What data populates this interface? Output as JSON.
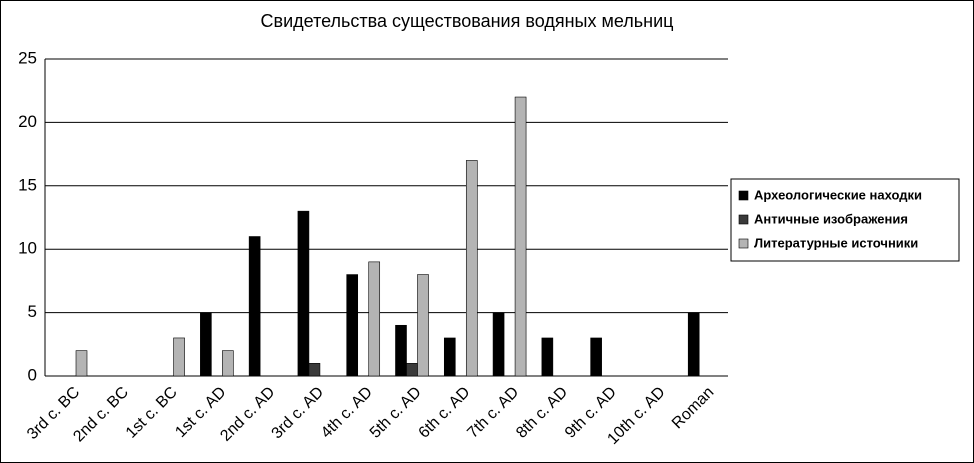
{
  "chart_data": {
    "type": "bar",
    "title": "Свидетельства существования водяных мельниц",
    "categories": [
      "3rd c. BC",
      "2nd c. BC",
      "1st c. BC",
      "1st c. AD",
      "2nd c. AD",
      "3rd c. AD",
      "4th c. AD",
      "5th c. AD",
      "6th c. AD",
      "7th c. AD",
      "8th c. AD",
      "9th c. AD",
      "10th c. AD",
      "Roman"
    ],
    "series": [
      {
        "name": "Археологические находки",
        "color": "#000000",
        "values": [
          0,
          0,
          0,
          5,
          11,
          13,
          8,
          4,
          3,
          5,
          3,
          3,
          0,
          5
        ]
      },
      {
        "name": "Античные изображения",
        "color": "#3a3a3a",
        "values": [
          0,
          0,
          0,
          0,
          0,
          1,
          0,
          1,
          0,
          0,
          0,
          0,
          0,
          0
        ]
      },
      {
        "name": "Литературные источники",
        "color": "#b4b4b4",
        "values": [
          2,
          0,
          3,
          2,
          0,
          0,
          9,
          8,
          17,
          22,
          0,
          0,
          0,
          0
        ]
      }
    ],
    "ylim": [
      0,
      25
    ],
    "yticks": [
      0,
      5,
      10,
      15,
      20,
      25
    ],
    "grid": true,
    "legend": "right"
  }
}
